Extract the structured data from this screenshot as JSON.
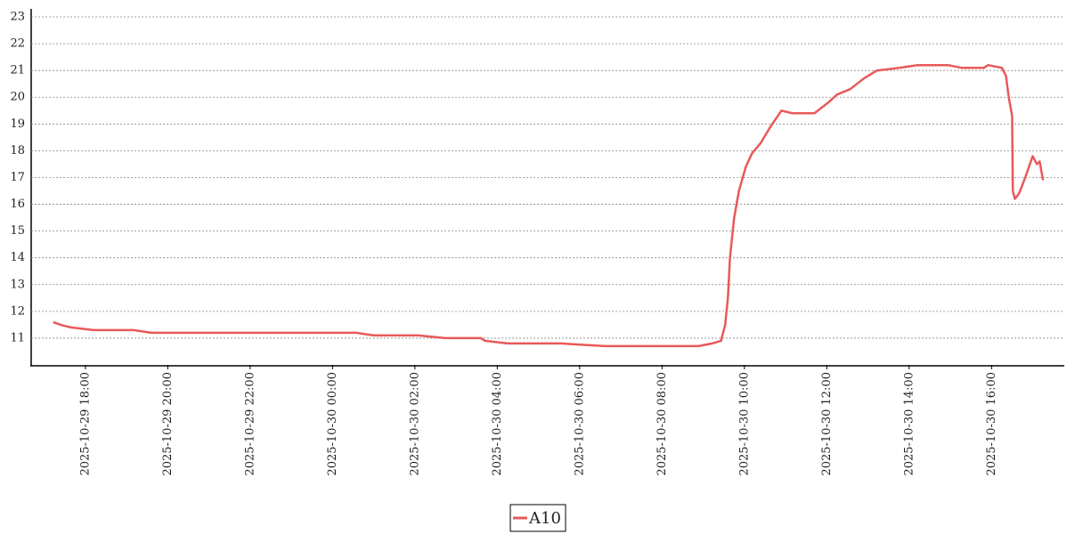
{
  "chart_data": {
    "type": "line",
    "x": [
      "2025-10-29 17:13",
      "2025-10-29 17:24",
      "2025-10-29 17:39",
      "2025-10-29 18:12",
      "2025-10-29 19:10",
      "2025-10-29 19:36",
      "2025-10-29 20:28",
      "2025-10-29 21:33",
      "2025-10-29 22:25",
      "2025-10-29 23:30",
      "2025-10-30 00:34",
      "2025-10-30 01:00",
      "2025-10-30 02:05",
      "2025-10-30 02:44",
      "2025-10-30 03:36",
      "2025-10-30 03:42",
      "2025-10-30 04:15",
      "2025-10-30 05:33",
      "2025-10-30 06:37",
      "2025-10-30 07:55",
      "2025-10-30 08:53",
      "2025-10-30 09:13",
      "2025-10-30 09:26",
      "2025-10-30 09:32",
      "2025-10-30 09:36",
      "2025-10-30 09:39",
      "2025-10-30 09:45",
      "2025-10-30 09:52",
      "2025-10-30 10:02",
      "2025-10-30 10:11",
      "2025-10-30 10:24",
      "2025-10-30 10:38",
      "2025-10-30 10:54",
      "2025-10-30 11:10",
      "2025-10-30 11:42",
      "2025-10-30 12:02",
      "2025-10-30 12:15",
      "2025-10-30 12:34",
      "2025-10-30 12:54",
      "2025-10-30 13:13",
      "2025-10-30 13:46",
      "2025-10-30 14:12",
      "2025-10-30 14:57",
      "2025-10-30 15:16",
      "2025-10-30 15:49",
      "2025-10-30 15:55",
      "2025-10-30 16:15",
      "2025-10-30 16:21",
      "2025-10-30 16:25",
      "2025-10-30 16:30",
      "2025-10-30 16:31",
      "2025-10-30 16:34",
      "2025-10-30 16:40",
      "2025-10-30 16:49",
      "2025-10-30 17:00",
      "2025-10-30 17:06",
      "2025-10-30 17:10",
      "2025-10-30 17:15"
    ],
    "series": [
      {
        "name": "A10",
        "color": "#e8595a",
        "values": [
          11.6,
          11.5,
          11.4,
          11.3,
          11.3,
          11.2,
          11.2,
          11.2,
          11.2,
          11.2,
          11.2,
          11.1,
          11.1,
          11.0,
          11.0,
          10.9,
          10.8,
          10.8,
          10.7,
          10.7,
          10.7,
          10.8,
          10.9,
          11.5,
          12.5,
          14,
          15.5,
          16.5,
          17.4,
          17.9,
          18.3,
          18.9,
          19.5,
          19.4,
          19.4,
          19.8,
          20.1,
          20.3,
          20.7,
          21.0,
          21.1,
          21.2,
          21.2,
          21.1,
          21.1,
          21.2,
          21.1,
          20.8,
          20.0,
          19.3,
          16.5,
          16.2,
          16.4,
          17.0,
          17.8,
          17.5,
          17.6,
          16.9
        ]
      }
    ],
    "xlim": [
      "2025-10-29 16:41",
      "2025-10-30 17:46"
    ],
    "xticks": [
      "2025-10-29 18:00",
      "2025-10-29 20:00",
      "2025-10-29 22:00",
      "2025-10-30 00:00",
      "2025-10-30 02:00",
      "2025-10-30 04:00",
      "2025-10-30 06:00",
      "2025-10-30 08:00",
      "2025-10-30 10:00",
      "2025-10-30 12:00",
      "2025-10-30 14:00",
      "2025-10-30 16:00"
    ],
    "ylim": [
      10,
      23.3
    ],
    "yticks": [
      11,
      12,
      13,
      14,
      15,
      16,
      17,
      18,
      19,
      20,
      21,
      22,
      23
    ],
    "grid": true,
    "legend": "bottom"
  }
}
